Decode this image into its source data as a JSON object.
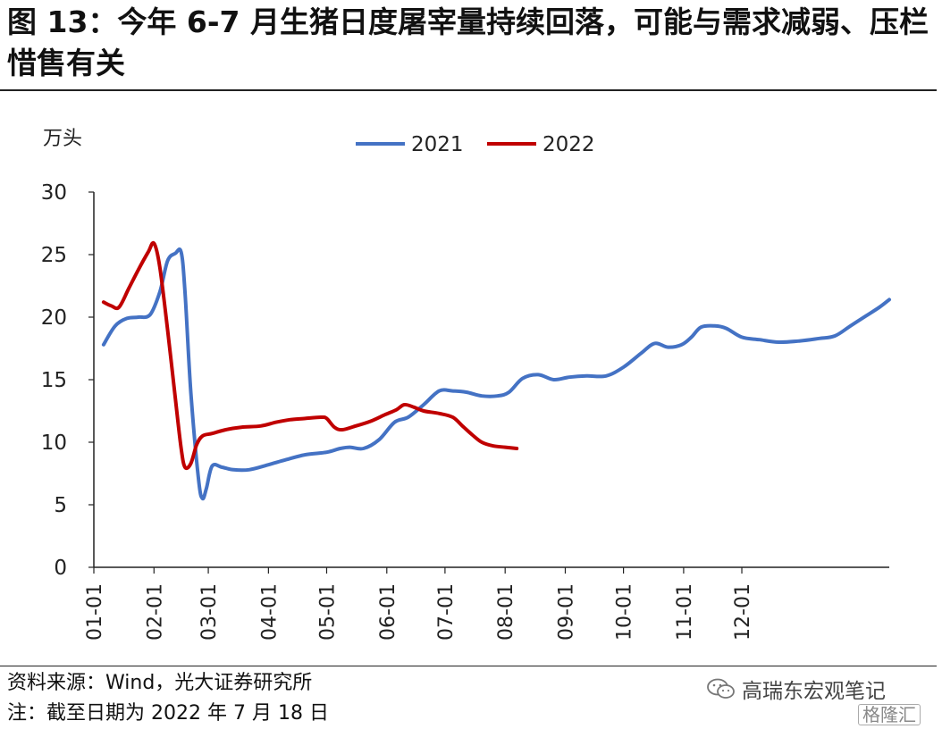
{
  "figure": {
    "title": "图 13：今年 6-7 月生猪日度屠宰量持续回落，可能与需求减弱、压栏惜售有关",
    "source": "资料来源：Wind，光大证券研究所",
    "note": "注：截至日期为 2022 年 7 月 18 日",
    "watermark": "高瑞东宏观笔记",
    "watermark_icon": "wechat-icon",
    "logo_text": "格隆汇"
  },
  "chart_data": {
    "type": "line",
    "title": "",
    "ylabel": "万头",
    "xlabel": "",
    "ylim": [
      0,
      30
    ],
    "yticks": [
      "0",
      "5",
      "10",
      "15",
      "20",
      "25",
      "30"
    ],
    "xticks": [
      "01-01",
      "02-01",
      "03-01",
      "04-01",
      "05-01",
      "06-01",
      "07-01",
      "08-01",
      "09-01",
      "10-01",
      "11-01",
      "12-01"
    ],
    "grid": false,
    "legend": "top-center",
    "series": [
      {
        "name": "2021",
        "color": "#4472C4",
        "points": [
          [
            "01-06",
            17.8
          ],
          [
            "01-12",
            19.3
          ],
          [
            "01-18",
            19.9
          ],
          [
            "01-24",
            20.0
          ],
          [
            "01-30",
            20.2
          ],
          [
            "02-04",
            22.0
          ],
          [
            "02-08",
            24.5
          ],
          [
            "02-12",
            25.1
          ],
          [
            "02-15",
            25.2
          ],
          [
            "02-17",
            22.0
          ],
          [
            "02-20",
            14.0
          ],
          [
            "02-24",
            7.0
          ],
          [
            "02-26",
            5.5
          ],
          [
            "02-28",
            6.3
          ],
          [
            "03-03",
            8.1
          ],
          [
            "03-08",
            8.0
          ],
          [
            "03-14",
            7.8
          ],
          [
            "03-22",
            7.8
          ],
          [
            "04-01",
            8.2
          ],
          [
            "04-10",
            8.6
          ],
          [
            "04-20",
            9.0
          ],
          [
            "05-01",
            9.2
          ],
          [
            "05-08",
            9.5
          ],
          [
            "05-13",
            9.6
          ],
          [
            "05-20",
            9.5
          ],
          [
            "05-28",
            10.2
          ],
          [
            "06-05",
            11.6
          ],
          [
            "06-12",
            12.0
          ],
          [
            "06-20",
            13.0
          ],
          [
            "06-28",
            14.1
          ],
          [
            "07-05",
            14.1
          ],
          [
            "07-12",
            14.0
          ],
          [
            "07-20",
            13.7
          ],
          [
            "07-28",
            13.7
          ],
          [
            "08-03",
            14.0
          ],
          [
            "08-10",
            15.1
          ],
          [
            "08-18",
            15.4
          ],
          [
            "08-26",
            15.0
          ],
          [
            "09-03",
            15.2
          ],
          [
            "09-12",
            15.3
          ],
          [
            "09-22",
            15.3
          ],
          [
            "10-01",
            16.0
          ],
          [
            "10-10",
            17.1
          ],
          [
            "10-17",
            17.9
          ],
          [
            "10-24",
            17.6
          ],
          [
            "10-31",
            17.8
          ],
          [
            "11-05",
            18.4
          ],
          [
            "11-10",
            19.2
          ],
          [
            "11-17",
            19.3
          ],
          [
            "11-23",
            19.1
          ],
          [
            "12-01",
            18.4
          ],
          [
            "12-10",
            18.2
          ],
          [
            "12-20",
            18.0
          ],
          [
            "12-31",
            18.1
          ],
          [
            "01-10",
            18.3
          ],
          [
            "01-18",
            18.5
          ],
          [
            "01-26",
            19.3
          ],
          [
            "02-03",
            20.1
          ],
          [
            "02-10",
            20.8
          ],
          [
            "02-15",
            21.4
          ]
        ]
      },
      {
        "name": "2022",
        "color": "#C00000",
        "points": [
          [
            "01-06",
            21.2
          ],
          [
            "01-10",
            20.9
          ],
          [
            "01-14",
            20.8
          ],
          [
            "01-19",
            22.3
          ],
          [
            "01-24",
            23.8
          ],
          [
            "01-29",
            25.2
          ],
          [
            "02-01",
            25.9
          ],
          [
            "02-04",
            24.0
          ],
          [
            "02-08",
            19.0
          ],
          [
            "02-12",
            13.5
          ],
          [
            "02-15",
            9.5
          ],
          [
            "02-17",
            8.0
          ],
          [
            "02-20",
            8.3
          ],
          [
            "02-23",
            9.8
          ],
          [
            "02-26",
            10.5
          ],
          [
            "03-03",
            10.7
          ],
          [
            "03-10",
            11.0
          ],
          [
            "03-18",
            11.2
          ],
          [
            "03-28",
            11.3
          ],
          [
            "04-05",
            11.6
          ],
          [
            "04-12",
            11.8
          ],
          [
            "04-20",
            11.9
          ],
          [
            "04-28",
            12.0
          ],
          [
            "05-01",
            11.9
          ],
          [
            "05-05",
            11.2
          ],
          [
            "05-09",
            11.0
          ],
          [
            "05-16",
            11.3
          ],
          [
            "05-24",
            11.7
          ],
          [
            "05-31",
            12.2
          ],
          [
            "06-06",
            12.6
          ],
          [
            "06-10",
            13.0
          ],
          [
            "06-15",
            12.8
          ],
          [
            "06-20",
            12.5
          ],
          [
            "06-28",
            12.3
          ],
          [
            "07-05",
            12.0
          ],
          [
            "07-10",
            11.3
          ],
          [
            "07-15",
            10.6
          ],
          [
            "07-20",
            10.0
          ],
          [
            "07-26",
            9.7
          ],
          [
            "08-01",
            9.6
          ],
          [
            "08-07",
            9.5
          ]
        ]
      }
    ]
  }
}
